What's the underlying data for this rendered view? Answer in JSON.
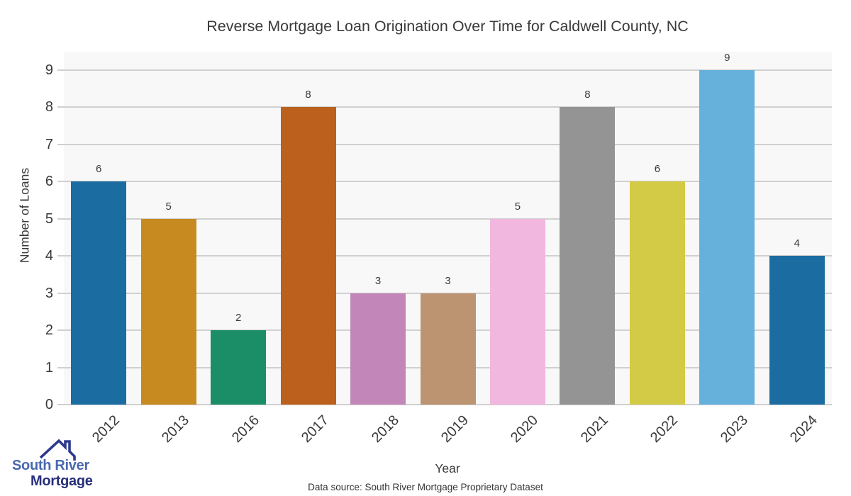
{
  "chart_data": {
    "type": "bar",
    "title": "Reverse Mortgage Loan Origination Over Time for Caldwell County, NC",
    "xlabel": "Year",
    "ylabel": "Number of Loans",
    "categories": [
      "2012",
      "2013",
      "2016",
      "2017",
      "2018",
      "2019",
      "2020",
      "2021",
      "2022",
      "2023",
      "2024"
    ],
    "values": [
      6,
      5,
      2,
      8,
      3,
      3,
      5,
      8,
      6,
      9,
      4
    ],
    "bar_colors": [
      "#1b6ca1",
      "#c68a21",
      "#1b8e68",
      "#bb611d",
      "#c286b8",
      "#bd9472",
      "#f2b7de",
      "#949494",
      "#d3ca45",
      "#66b0dc",
      "#1b6ca1"
    ],
    "yticks": [
      0,
      1,
      2,
      3,
      4,
      5,
      6,
      7,
      8,
      9
    ],
    "ylim": [
      0,
      9.49
    ],
    "grid": true,
    "legend_position": "none",
    "plot_background": "#f8f8f8",
    "grid_color": "#d0d0d0",
    "text_color": "#3a3a3a"
  },
  "footer": {
    "data_source": "Data source: South River Mortgage Proprietary Dataset"
  },
  "logo": {
    "line1": "South River",
    "line2": "Mortgage",
    "line1_color": "#4a68b0",
    "line2_color": "#292f7c",
    "roof_color": "#2e3a8c"
  }
}
